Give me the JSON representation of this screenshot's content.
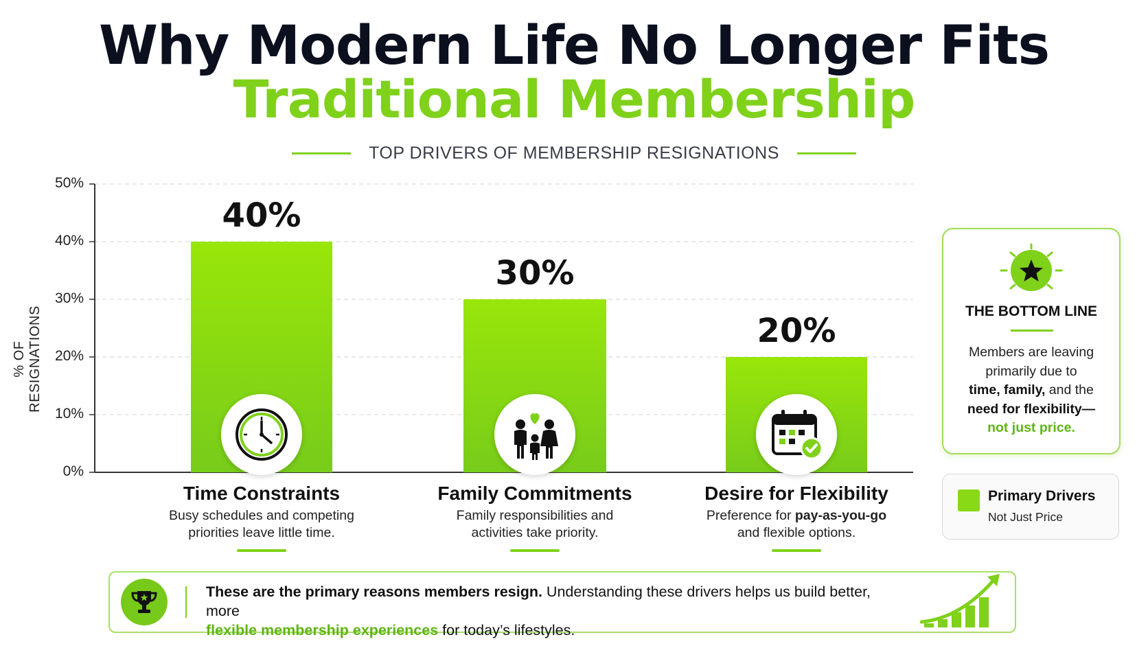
{
  "header": {
    "title_line1": "Why Modern Life No Longer Fits",
    "title_line2": "Traditional Membership",
    "subtitle": "TOP DRIVERS OF MEMBERSHIP RESIGNATIONS"
  },
  "chart_data": {
    "type": "bar",
    "title": "TOP DRIVERS OF MEMBERSHIP RESIGNATIONS",
    "ylabel": "% OF RESIGNATIONS",
    "xlabel": "",
    "ylim": [
      0,
      50
    ],
    "yticks": [
      "0%",
      "10%",
      "20%",
      "30%",
      "40%",
      "50%"
    ],
    "categories": [
      "Time Constraints",
      "Family Commitments",
      "Desire for Flexibility"
    ],
    "values": [
      40,
      30,
      20
    ],
    "value_labels": [
      "40%",
      "30%",
      "20%"
    ],
    "series": [
      {
        "name": "Primary Drivers",
        "values": [
          40,
          30,
          20
        ]
      }
    ],
    "bar_color": "#8ad916",
    "grid": true,
    "legend_position": "right"
  },
  "bars": [
    {
      "icon": "clock-icon",
      "desc_pre": "Busy schedules and competing",
      "desc_post": "priorities leave little time.",
      "desc_bold": ""
    },
    {
      "icon": "family-icon",
      "desc_pre": "Family responsibilities and",
      "desc_post": "activities take priority.",
      "desc_bold": ""
    },
    {
      "icon": "calendar-check-icon",
      "desc_pre": "Preference for ",
      "desc_bold": "pay-as-you-go",
      "desc_post": "and flexible options."
    }
  ],
  "bottom_line": {
    "icon": "star-icon",
    "title": "THE BOTTOM LINE",
    "text_1": "Members are leaving primarily due to",
    "bold_1": "time, family,",
    "text_2": " and the",
    "bold_2": "need for flexibility—",
    "green": "not just price."
  },
  "legend": {
    "title": "Primary Drivers",
    "subtitle": "Not Just Price"
  },
  "banner": {
    "icon": "trophy-icon",
    "bold": "These are the primary reasons members resign.",
    "text_1": " Understanding these drivers helps us build better, more",
    "green": "flexible membership experiences",
    "text_2": " for today’s lifestyles.",
    "deco_icon": "growth-chart-icon"
  },
  "colors": {
    "accent": "#7fd11a",
    "dark": "#0b0f1e"
  }
}
